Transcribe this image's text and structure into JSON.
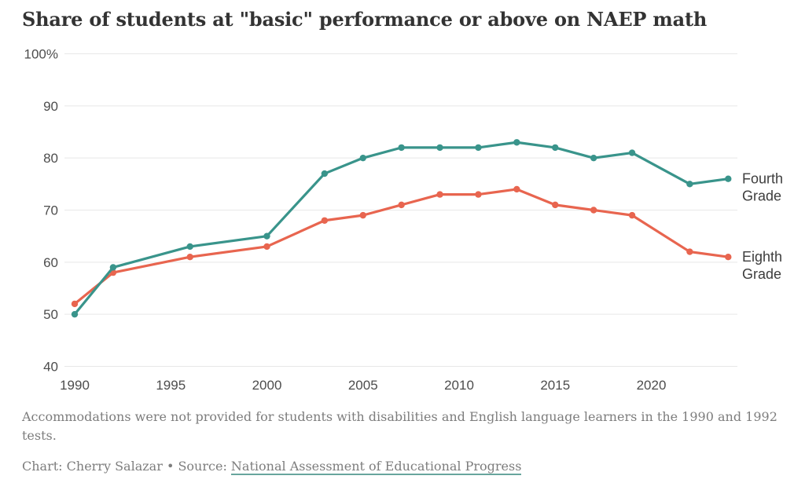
{
  "chart_data": {
    "type": "line",
    "title": "Share of students at \"basic\" performance or above on NAEP math",
    "x": [
      1990,
      1992,
      1996,
      2000,
      2003,
      2005,
      2007,
      2009,
      2011,
      2013,
      2015,
      2017,
      2019,
      2022,
      2024
    ],
    "series": [
      {
        "name": "Fourth Grade",
        "label_lines": [
          "Fourth",
          "Grade"
        ],
        "color": "#39948B",
        "values": [
          50,
          59,
          63,
          65,
          77,
          80,
          82,
          82,
          82,
          83,
          82,
          80,
          81,
          75,
          76
        ]
      },
      {
        "name": "Eighth Grade",
        "label_lines": [
          "Eighth",
          "Grade"
        ],
        "color": "#E8654F",
        "values": [
          52,
          58,
          61,
          63,
          68,
          69,
          71,
          73,
          73,
          74,
          71,
          70,
          69,
          62,
          61
        ]
      }
    ],
    "ylim": [
      40,
      100
    ],
    "xlim": [
      1990,
      2024
    ],
    "yticks": [
      {
        "value": 100,
        "label": "100%"
      },
      {
        "value": 90,
        "label": "90"
      },
      {
        "value": 80,
        "label": "80"
      },
      {
        "value": 70,
        "label": "70"
      },
      {
        "value": 60,
        "label": "60"
      },
      {
        "value": 50,
        "label": "50"
      },
      {
        "value": 40,
        "label": "40"
      }
    ],
    "xticks": [
      "1990",
      "1995",
      "2000",
      "2005",
      "2010",
      "2015",
      "2020"
    ],
    "grid": "horizontal",
    "grid_color": "#e8e8e8",
    "legend_position": "right-of-line-end"
  },
  "footnote": {
    "lines": [
      "Accommodations were not provided for students with disabilities and English language learners in the 1990 and 1992",
      "tests."
    ]
  },
  "credit": {
    "prefix": "Chart: Cherry Salazar • Source: ",
    "source_link": "National Assessment of Educational Progress",
    "link_underline_color": "#68a59d"
  }
}
